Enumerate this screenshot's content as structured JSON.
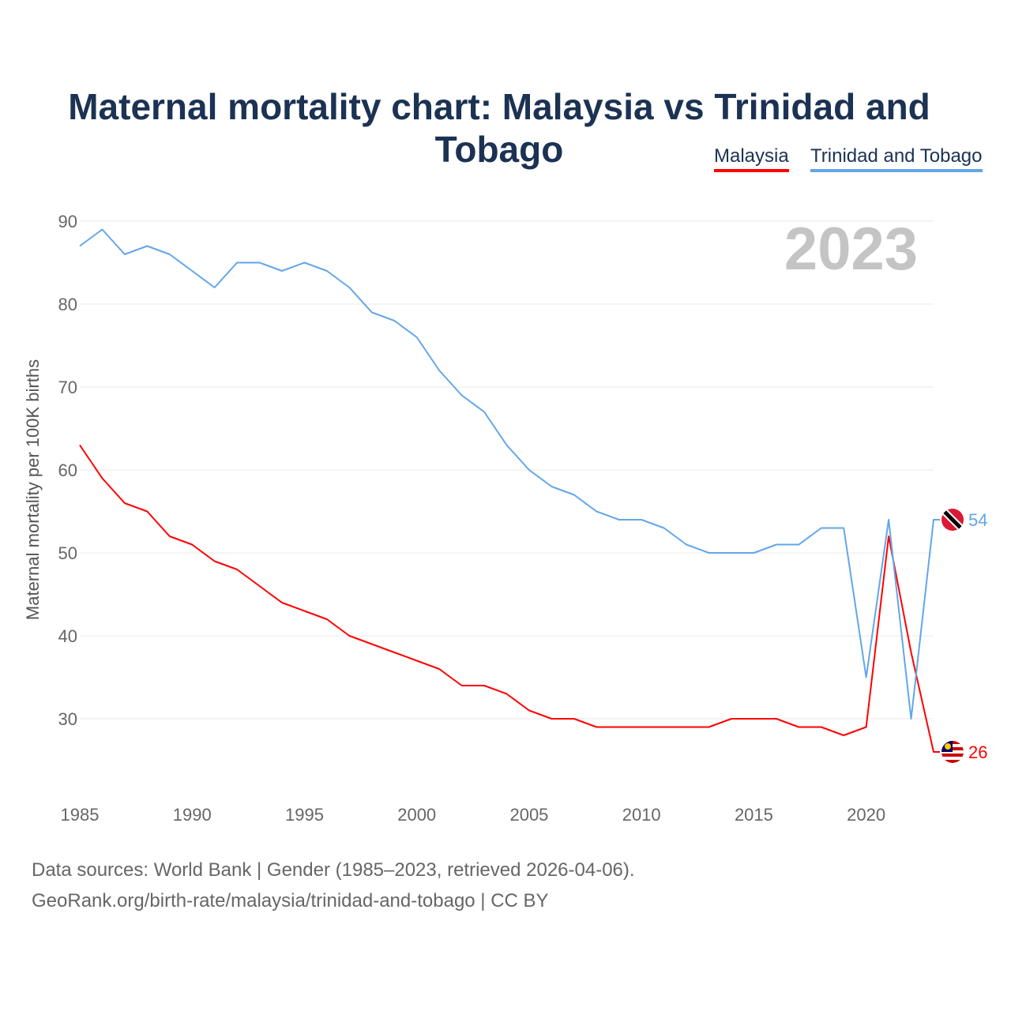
{
  "chart_data": {
    "type": "line",
    "title": "Maternal mortality chart: Malaysia vs Trinidad and Tobago",
    "ylabel": "Maternal mortality per 100K births",
    "xlabel": "",
    "year_label": "2023",
    "ylim": [
      20,
      90
    ],
    "xlim": [
      1985,
      2023
    ],
    "yticks": [
      30,
      40,
      50,
      60,
      70,
      80,
      90
    ],
    "xticks": [
      1985,
      1990,
      1995,
      2000,
      2005,
      2010,
      2015,
      2020
    ],
    "grid": true,
    "legend_position": "top-right",
    "x": [
      1985,
      1986,
      1987,
      1988,
      1989,
      1990,
      1991,
      1992,
      1993,
      1994,
      1995,
      1996,
      1997,
      1998,
      1999,
      2000,
      2001,
      2002,
      2003,
      2004,
      2005,
      2006,
      2007,
      2008,
      2009,
      2010,
      2011,
      2012,
      2013,
      2014,
      2015,
      2016,
      2017,
      2018,
      2019,
      2020,
      2021,
      2022,
      2023
    ],
    "series": [
      {
        "name": "Malaysia",
        "color": "#ff0000",
        "end_label": "26",
        "values": [
          63,
          59,
          56,
          55,
          52,
          51,
          49,
          48,
          46,
          44,
          43,
          42,
          40,
          39,
          38,
          37,
          36,
          34,
          34,
          33,
          31,
          30,
          30,
          29,
          29,
          29,
          29,
          29,
          29,
          30,
          30,
          30,
          29,
          29,
          28,
          29,
          52,
          38,
          26
        ]
      },
      {
        "name": "Trinidad and Tobago",
        "color": "#62a6ea",
        "end_label": "54",
        "values": [
          87,
          89,
          86,
          87,
          86,
          84,
          82,
          85,
          85,
          84,
          85,
          84,
          82,
          79,
          78,
          76,
          72,
          69,
          67,
          63,
          60,
          58,
          57,
          55,
          54,
          54,
          53,
          51,
          50,
          50,
          50,
          51,
          51,
          53,
          53,
          35,
          54,
          30,
          54
        ]
      }
    ]
  },
  "footer": {
    "line1": "Data sources: World Bank | Gender (1985–2023, retrieved 2026-04-06).",
    "line2": "GeoRank.org/birth-rate/malaysia/trinidad-and-tobago | CC BY"
  }
}
